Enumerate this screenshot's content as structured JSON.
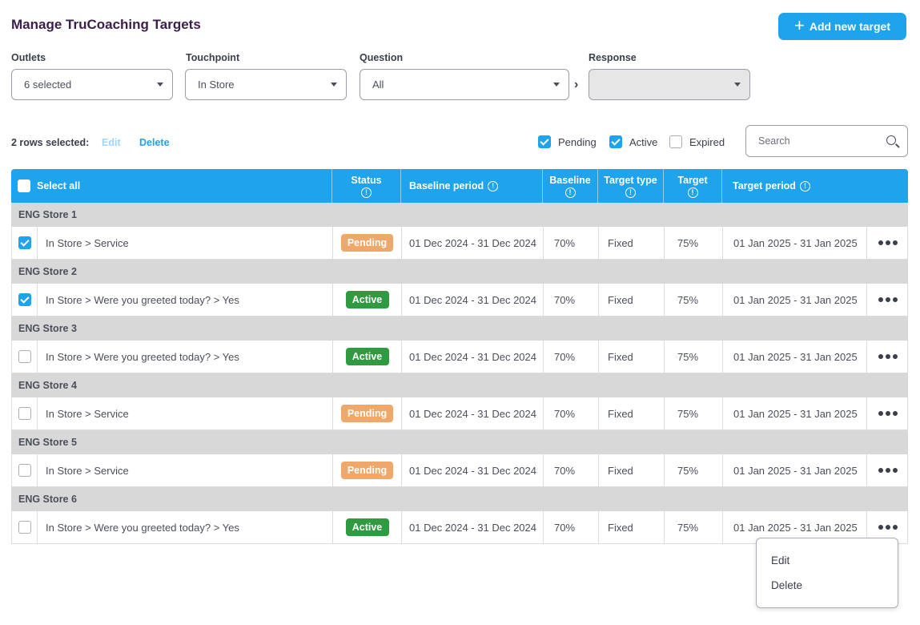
{
  "header": {
    "title": "Manage TruCoaching Targets",
    "add_button_label": "Add new target"
  },
  "filters": {
    "outlets": {
      "label": "Outlets",
      "value": "6 selected"
    },
    "touchpoint": {
      "label": "Touchpoint",
      "value": "In Store"
    },
    "question": {
      "label": "Question",
      "value": "All"
    },
    "response": {
      "label": "Response",
      "value": ""
    }
  },
  "toolbar": {
    "rows_selected": "2 rows selected:",
    "edit_label": "Edit",
    "delete_label": "Delete",
    "status_filters": [
      {
        "label": "Pending",
        "checked": true
      },
      {
        "label": "Active",
        "checked": true
      },
      {
        "label": "Expired",
        "checked": false
      }
    ],
    "search_placeholder": "Search"
  },
  "table": {
    "columns": {
      "select_all": "Select all",
      "status": "Status",
      "baseline_period": "Baseline period",
      "baseline": "Baseline",
      "target_type": "Target type",
      "target": "Target",
      "target_period": "Target period"
    },
    "groups": [
      {
        "name": "ENG Store 1",
        "checked": true,
        "path": "In Store > Service",
        "status": "Pending",
        "baseline_period": "01 Dec 2024 - 31 Dec 2024",
        "baseline": "70%",
        "target_type": "Fixed",
        "target": "75%",
        "target_period": "01 Jan 2025 - 31 Jan 2025"
      },
      {
        "name": "ENG Store 2",
        "checked": true,
        "path": "In Store > Were you greeted today? > Yes",
        "status": "Active",
        "baseline_period": "01 Dec 2024 - 31 Dec 2024",
        "baseline": "70%",
        "target_type": "Fixed",
        "target": "75%",
        "target_period": "01 Jan 2025 - 31 Jan 2025"
      },
      {
        "name": "ENG Store 3",
        "checked": false,
        "path": "In Store > Were you greeted today? > Yes",
        "status": "Active",
        "baseline_period": "01 Dec 2024 - 31 Dec 2024",
        "baseline": "70%",
        "target_type": "Fixed",
        "target": "75%",
        "target_period": "01 Jan 2025 - 31 Jan 2025"
      },
      {
        "name": "ENG Store 4",
        "checked": false,
        "path": "In Store > Service",
        "status": "Pending",
        "baseline_period": "01 Dec 2024 - 31 Dec 2024",
        "baseline": "70%",
        "target_type": "Fixed",
        "target": "75%",
        "target_period": "01 Jan 2025 - 31 Jan 2025"
      },
      {
        "name": "ENG Store 5",
        "checked": false,
        "path": "In Store > Service",
        "status": "Pending",
        "baseline_period": "01 Dec 2024 - 31 Dec 2024",
        "baseline": "70%",
        "target_type": "Fixed",
        "target": "75%",
        "target_period": "01 Jan 2025 - 31 Jan 2025"
      },
      {
        "name": "ENG Store 6",
        "checked": false,
        "path": "In Store > Were you greeted today? > Yes",
        "status": "Active",
        "baseline_period": "01 Dec 2024 - 31 Dec 2024",
        "baseline": "70%",
        "target_type": "Fixed",
        "target": "75%",
        "target_period": "01 Jan 2025 - 31 Jan 2025"
      }
    ]
  },
  "context_menu": {
    "edit": "Edit",
    "delete": "Delete"
  },
  "colors": {
    "accent": "#1fa3ec",
    "pending": "#f0a76a",
    "active": "#2f9a3f"
  }
}
